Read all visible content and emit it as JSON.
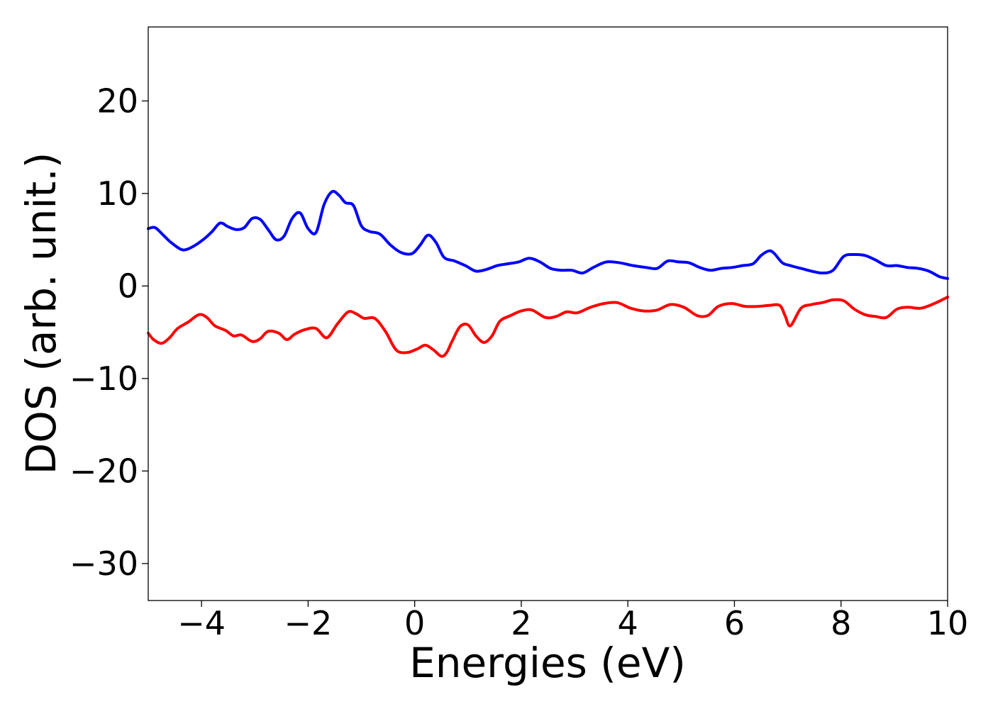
{
  "chart_data": {
    "type": "line",
    "xlabel": "Energies (eV)",
    "ylabel": "DOS (arb. unit.)",
    "xlim": [
      -5,
      10
    ],
    "ylim": [
      -34,
      28
    ],
    "xticks": [
      {
        "value": -4,
        "label": "−4"
      },
      {
        "value": -2,
        "label": "−2"
      },
      {
        "value": 0,
        "label": "0"
      },
      {
        "value": 2,
        "label": "2"
      },
      {
        "value": 4,
        "label": "4"
      },
      {
        "value": 6,
        "label": "6"
      },
      {
        "value": 8,
        "label": "8"
      },
      {
        "value": 10,
        "label": "10"
      }
    ],
    "yticks": [
      {
        "value": 20,
        "label": "20"
      },
      {
        "value": 10,
        "label": "10"
      },
      {
        "value": 0,
        "label": "0"
      },
      {
        "value": -10,
        "label": "−10"
      },
      {
        "value": -20,
        "label": "−20"
      },
      {
        "value": -30,
        "label": "−30"
      }
    ],
    "grid": false,
    "series": [
      {
        "color": "#0000ff",
        "x": [
          -5.0,
          -4.87,
          -4.7,
          -4.55,
          -4.35,
          -4.15,
          -3.95,
          -3.8,
          -3.65,
          -3.5,
          -3.35,
          -3.2,
          -3.05,
          -2.9,
          -2.75,
          -2.6,
          -2.45,
          -2.3,
          -2.15,
          -2.0,
          -1.85,
          -1.7,
          -1.55,
          -1.42,
          -1.3,
          -1.15,
          -1.0,
          -0.85,
          -0.65,
          -0.45,
          -0.25,
          -0.05,
          0.1,
          0.25,
          0.4,
          0.55,
          0.75,
          0.95,
          1.15,
          1.35,
          1.55,
          1.75,
          1.95,
          2.15,
          2.35,
          2.55,
          2.75,
          2.95,
          3.15,
          3.35,
          3.6,
          3.85,
          4.1,
          4.35,
          4.55,
          4.75,
          4.95,
          5.15,
          5.35,
          5.55,
          5.75,
          5.95,
          6.15,
          6.35,
          6.5,
          6.65,
          6.75,
          6.9,
          7.05,
          7.25,
          7.45,
          7.65,
          7.85,
          8.05,
          8.25,
          8.45,
          8.65,
          8.85,
          9.05,
          9.25,
          9.45,
          9.65,
          9.85,
          10.0
        ],
        "y": [
          6.2,
          6.3,
          5.4,
          4.6,
          3.9,
          4.3,
          5.1,
          5.9,
          6.8,
          6.4,
          6.1,
          6.3,
          7.3,
          7.2,
          6.1,
          5.0,
          5.4,
          7.3,
          7.9,
          6.2,
          5.8,
          8.8,
          10.2,
          9.8,
          9.0,
          8.7,
          6.5,
          5.9,
          5.6,
          4.4,
          3.6,
          3.5,
          4.4,
          5.5,
          4.7,
          3.1,
          2.7,
          2.2,
          1.6,
          1.8,
          2.2,
          2.4,
          2.6,
          3.0,
          2.6,
          1.9,
          1.7,
          1.7,
          1.4,
          2.0,
          2.6,
          2.5,
          2.2,
          2.0,
          1.9,
          2.7,
          2.6,
          2.5,
          2.0,
          1.7,
          1.9,
          2.0,
          2.2,
          2.4,
          3.3,
          3.8,
          3.5,
          2.5,
          2.2,
          1.9,
          1.6,
          1.4,
          1.7,
          3.2,
          3.4,
          3.3,
          2.8,
          2.2,
          2.2,
          2.0,
          1.9,
          1.6,
          1.0,
          0.8
        ]
      },
      {
        "color": "#ff0000",
        "x": [
          -5.0,
          -4.9,
          -4.75,
          -4.6,
          -4.45,
          -4.25,
          -4.05,
          -3.9,
          -3.75,
          -3.55,
          -3.4,
          -3.25,
          -3.05,
          -2.9,
          -2.75,
          -2.55,
          -2.4,
          -2.25,
          -2.05,
          -1.85,
          -1.65,
          -1.45,
          -1.25,
          -1.1,
          -0.95,
          -0.75,
          -0.55,
          -0.35,
          -0.15,
          0.05,
          0.2,
          0.35,
          0.5,
          0.6,
          0.7,
          0.85,
          1.0,
          1.15,
          1.3,
          1.45,
          1.6,
          1.8,
          2.0,
          2.2,
          2.45,
          2.65,
          2.85,
          3.05,
          3.3,
          3.55,
          3.8,
          4.05,
          4.3,
          4.55,
          4.8,
          5.05,
          5.3,
          5.5,
          5.7,
          5.95,
          6.2,
          6.45,
          6.65,
          6.85,
          6.95,
          7.05,
          7.25,
          7.45,
          7.65,
          7.85,
          8.05,
          8.25,
          8.45,
          8.65,
          8.85,
          9.05,
          9.25,
          9.5,
          9.75,
          10.0
        ],
        "y": [
          -5.1,
          -5.8,
          -6.2,
          -5.6,
          -4.6,
          -3.9,
          -3.1,
          -3.4,
          -4.3,
          -4.8,
          -5.4,
          -5.3,
          -6.0,
          -5.7,
          -4.9,
          -5.1,
          -5.8,
          -5.2,
          -4.7,
          -4.6,
          -5.6,
          -4.1,
          -2.8,
          -3.0,
          -3.5,
          -3.5,
          -4.9,
          -6.9,
          -7.2,
          -6.8,
          -6.4,
          -6.9,
          -7.6,
          -7.2,
          -6.0,
          -4.4,
          -4.2,
          -5.4,
          -6.1,
          -5.4,
          -3.8,
          -3.2,
          -2.7,
          -2.6,
          -3.4,
          -3.3,
          -2.8,
          -2.9,
          -2.3,
          -1.9,
          -1.8,
          -2.4,
          -2.7,
          -2.6,
          -2.0,
          -2.3,
          -3.2,
          -3.2,
          -2.2,
          -1.9,
          -2.2,
          -2.2,
          -2.1,
          -2.1,
          -3.2,
          -4.3,
          -2.4,
          -2.0,
          -1.8,
          -1.5,
          -1.6,
          -2.5,
          -3.1,
          -3.3,
          -3.4,
          -2.5,
          -2.3,
          -2.4,
          -1.9,
          -1.2
        ]
      }
    ]
  }
}
